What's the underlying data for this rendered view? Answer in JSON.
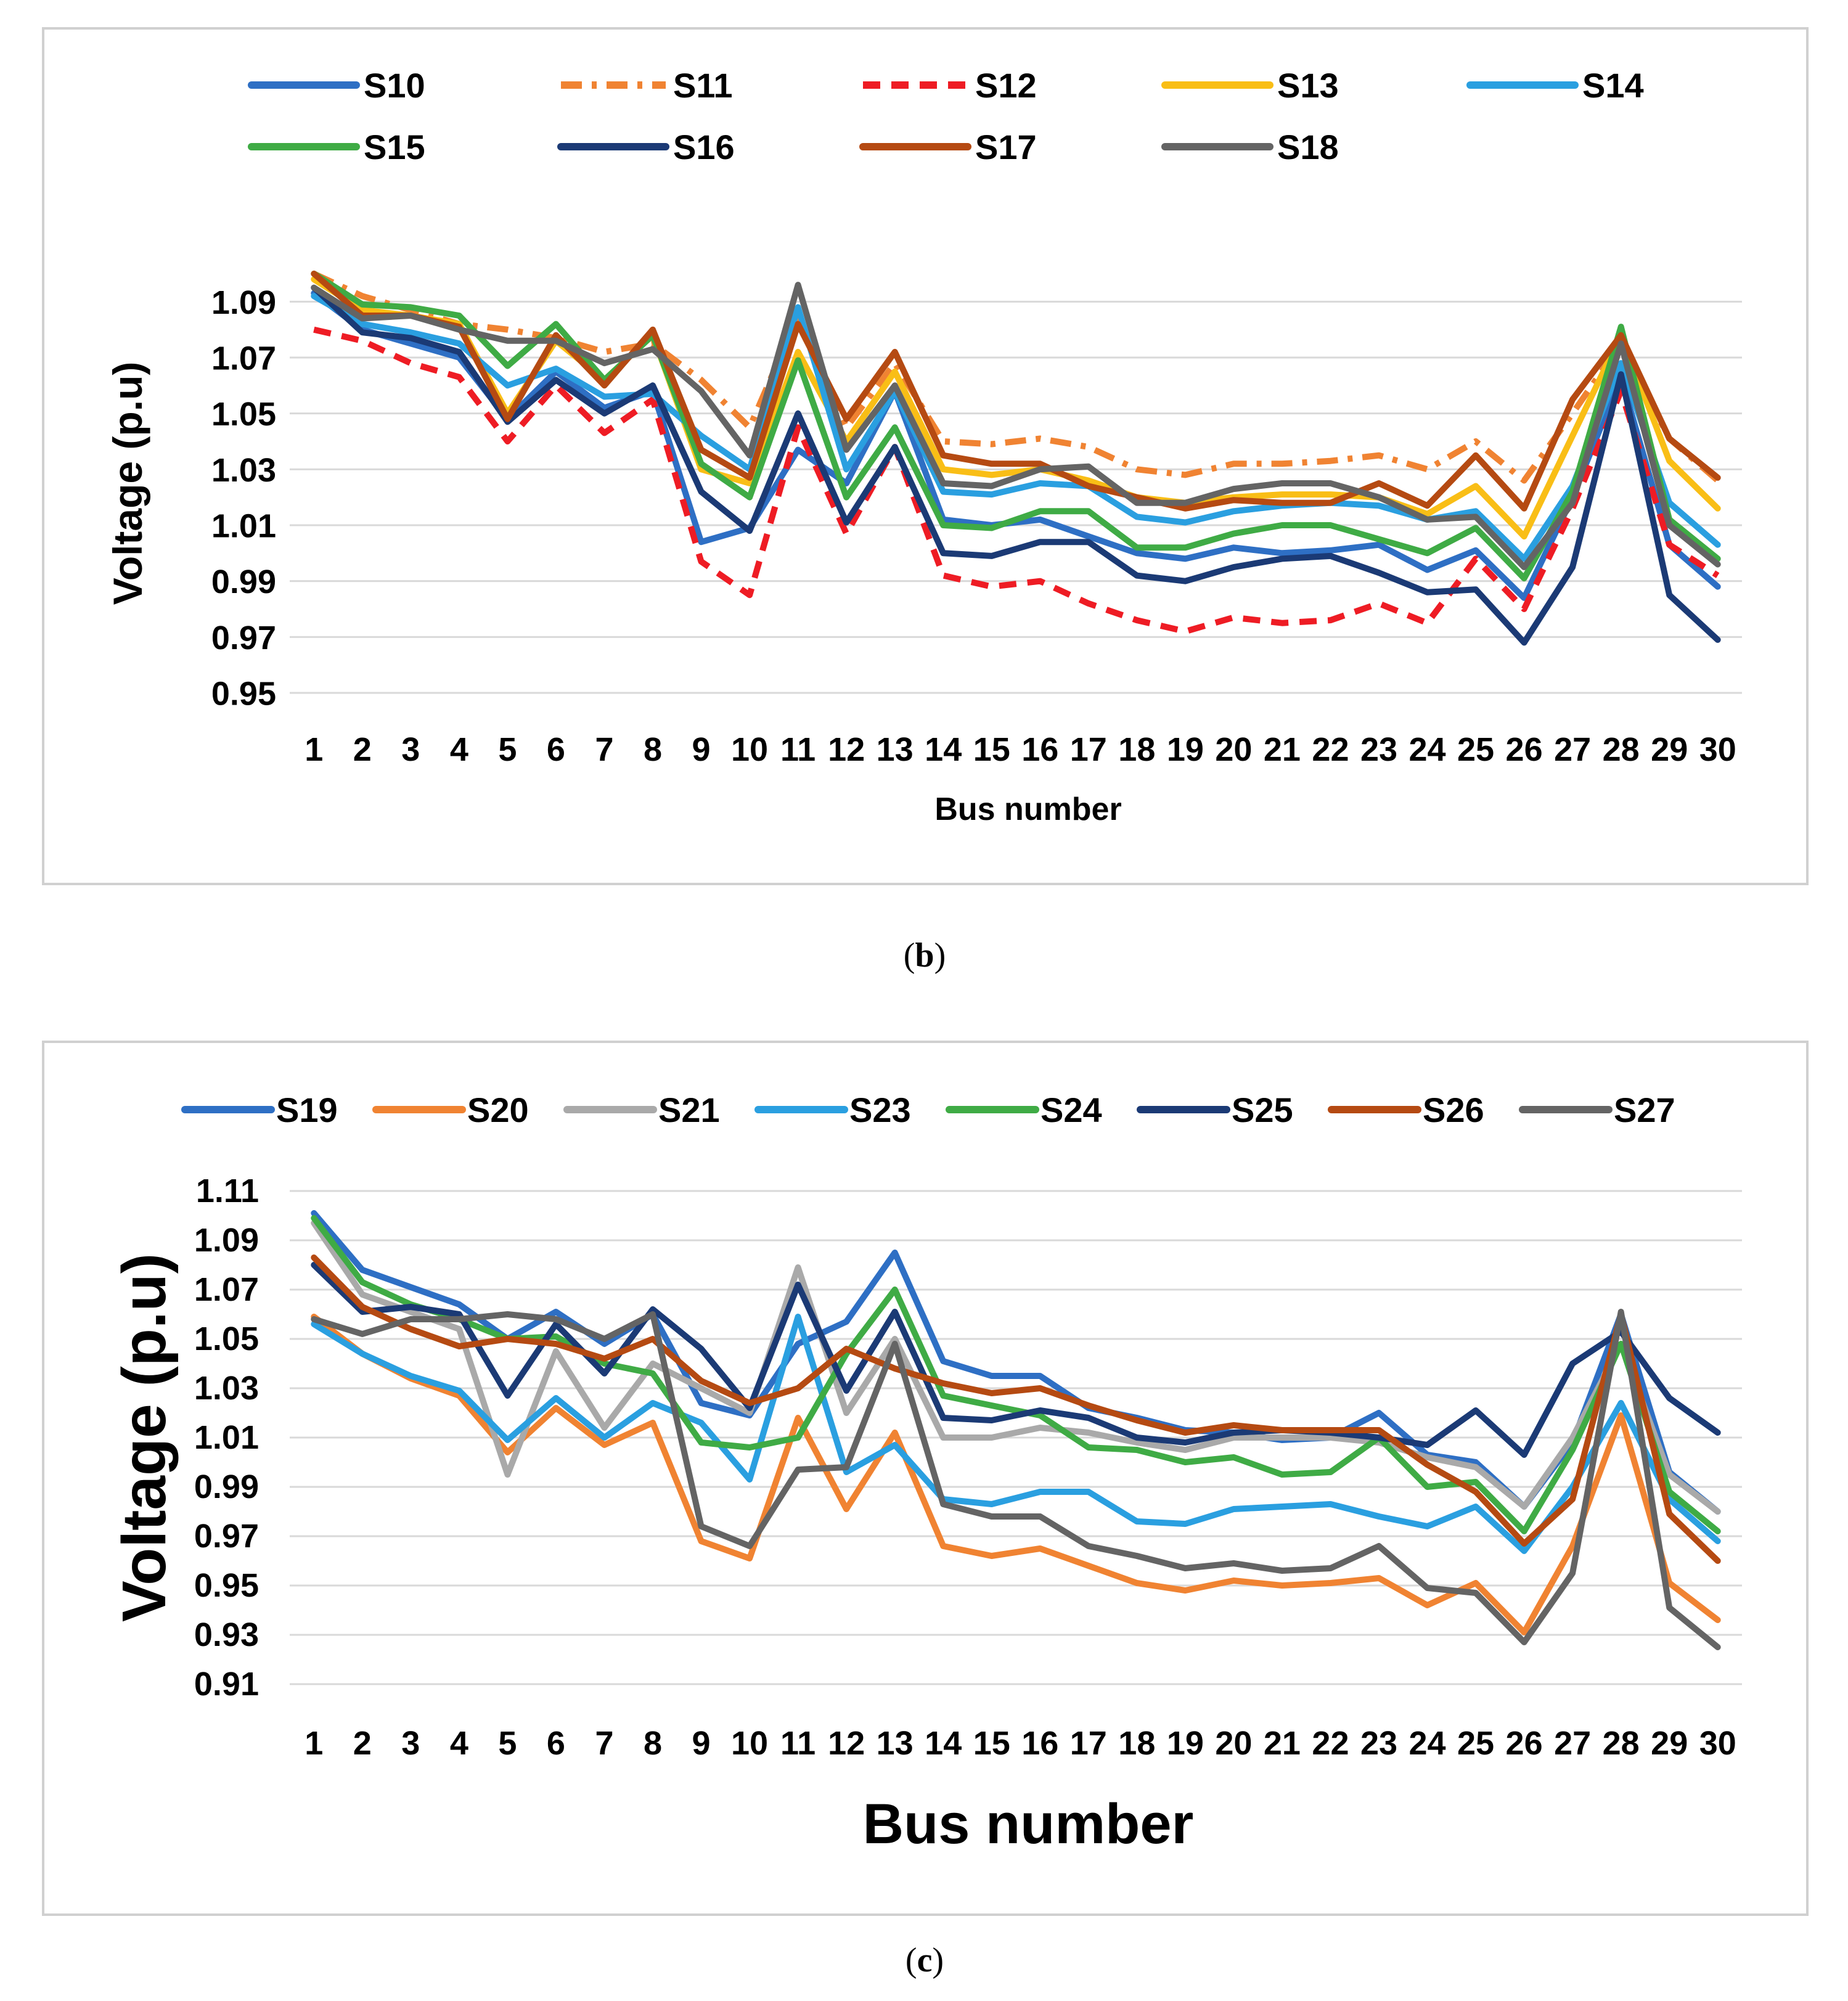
{
  "chart_data": [
    {
      "type": "line",
      "panel_label": "(b)",
      "caption_letter": "b",
      "xlabel": "Bus number",
      "ylabel": "Voltage (p.u)",
      "ylim": [
        0.95,
        1.1
      ],
      "yticks": [
        "0.95",
        "0.97",
        "0.99",
        "1.01",
        "1.03",
        "1.05",
        "1.07",
        "1.09"
      ],
      "grid": true,
      "legend_position": "top",
      "categories": [
        "1",
        "2",
        "3",
        "4",
        "5",
        "6",
        "7",
        "8",
        "9",
        "10",
        "11",
        "12",
        "13",
        "14",
        "15",
        "16",
        "17",
        "18",
        "19",
        "20",
        "21",
        "22",
        "23",
        "24",
        "25",
        "26",
        "27",
        "28",
        "29",
        "30"
      ],
      "series": [
        {
          "name": "S10",
          "color": "#2e6fc4",
          "dash": "solid",
          "values": [
            1.093,
            1.08,
            1.075,
            1.07,
            1.048,
            1.065,
            1.052,
            1.058,
            1.004,
            1.009,
            1.037,
            1.025,
            1.058,
            1.012,
            1.01,
            1.012,
            1.006,
            1.0,
            0.998,
            1.002,
            1.0,
            1.001,
            1.003,
            0.994,
            1.001,
            0.984,
            1.02,
            1.063,
            1.003,
            0.988
          ]
        },
        {
          "name": "S11",
          "color": "#f08332",
          "dash": "dashdot",
          "values": [
            1.1,
            1.092,
            1.087,
            1.082,
            1.08,
            1.077,
            1.072,
            1.075,
            1.062,
            1.045,
            1.085,
            1.045,
            1.068,
            1.04,
            1.039,
            1.041,
            1.038,
            1.03,
            1.028,
            1.032,
            1.032,
            1.033,
            1.035,
            1.03,
            1.04,
            1.026,
            1.05,
            1.075,
            1.041,
            1.026
          ]
        },
        {
          "name": "S12",
          "color": "#ee1c24",
          "dash": "dashed",
          "values": [
            1.08,
            1.076,
            1.068,
            1.063,
            1.04,
            1.06,
            1.043,
            1.055,
            0.997,
            0.985,
            1.045,
            1.007,
            1.038,
            0.992,
            0.988,
            0.99,
            0.982,
            0.976,
            0.972,
            0.977,
            0.975,
            0.976,
            0.982,
            0.975,
            0.998,
            0.98,
            1.016,
            1.058,
            1.003,
            0.992
          ]
        },
        {
          "name": "S13",
          "color": "#f9be16",
          "dash": "solid",
          "values": [
            1.098,
            1.087,
            1.085,
            1.082,
            1.05,
            1.076,
            1.062,
            1.078,
            1.03,
            1.025,
            1.072,
            1.04,
            1.065,
            1.03,
            1.028,
            1.03,
            1.026,
            1.02,
            1.018,
            1.02,
            1.021,
            1.021,
            1.02,
            1.014,
            1.024,
            1.006,
            1.042,
            1.078,
            1.033,
            1.016
          ]
        },
        {
          "name": "S14",
          "color": "#2a9fe0",
          "dash": "solid",
          "values": [
            1.092,
            1.082,
            1.079,
            1.075,
            1.06,
            1.066,
            1.056,
            1.057,
            1.042,
            1.03,
            1.088,
            1.03,
            1.058,
            1.022,
            1.021,
            1.025,
            1.024,
            1.013,
            1.011,
            1.015,
            1.017,
            1.018,
            1.017,
            1.012,
            1.015,
            0.998,
            1.024,
            1.068,
            1.018,
            1.003
          ]
        },
        {
          "name": "S15",
          "color": "#3fab45",
          "dash": "solid",
          "values": [
            1.1,
            1.089,
            1.088,
            1.085,
            1.067,
            1.082,
            1.062,
            1.078,
            1.032,
            1.02,
            1.069,
            1.02,
            1.045,
            1.01,
            1.009,
            1.015,
            1.015,
            1.002,
            1.002,
            1.007,
            1.01,
            1.01,
            1.005,
            1.0,
            1.009,
            0.991,
            1.022,
            1.081,
            1.012,
            0.998
          ]
        },
        {
          "name": "S16",
          "color": "#1b3a75",
          "dash": "solid",
          "values": [
            1.095,
            1.079,
            1.077,
            1.072,
            1.047,
            1.062,
            1.05,
            1.06,
            1.022,
            1.008,
            1.05,
            1.011,
            1.038,
            1.0,
            0.999,
            1.004,
            1.004,
            0.992,
            0.99,
            0.995,
            0.998,
            0.999,
            0.993,
            0.986,
            0.987,
            0.968,
            0.995,
            1.064,
            0.985,
            0.969
          ]
        },
        {
          "name": "S17",
          "color": "#b54a12",
          "dash": "solid",
          "values": [
            1.1,
            1.085,
            1.085,
            1.081,
            1.048,
            1.078,
            1.06,
            1.08,
            1.037,
            1.027,
            1.082,
            1.048,
            1.072,
            1.035,
            1.032,
            1.032,
            1.024,
            1.02,
            1.016,
            1.019,
            1.018,
            1.018,
            1.025,
            1.017,
            1.035,
            1.016,
            1.055,
            1.078,
            1.041,
            1.027
          ]
        },
        {
          "name": "S18",
          "color": "#646464",
          "dash": "solid",
          "values": [
            1.095,
            1.084,
            1.085,
            1.08,
            1.076,
            1.076,
            1.068,
            1.073,
            1.058,
            1.035,
            1.096,
            1.037,
            1.06,
            1.025,
            1.024,
            1.03,
            1.031,
            1.018,
            1.018,
            1.023,
            1.025,
            1.025,
            1.02,
            1.012,
            1.013,
            0.995,
            1.018,
            1.075,
            1.01,
            0.996
          ]
        }
      ]
    },
    {
      "type": "line",
      "panel_label": "(c)",
      "caption_letter": "c",
      "xlabel": "Bus number",
      "ylabel": "Voltage (p.u)",
      "ylim": [
        0.91,
        1.11
      ],
      "yticks": [
        "0.91",
        "0.93",
        "0.95",
        "0.97",
        "0.99",
        "1.01",
        "1.03",
        "1.05",
        "1.07",
        "1.09",
        "1.11"
      ],
      "grid": true,
      "legend_position": "top",
      "categories": [
        "1",
        "2",
        "3",
        "4",
        "5",
        "6",
        "7",
        "8",
        "9",
        "10",
        "11",
        "12",
        "13",
        "14",
        "15",
        "16",
        "17",
        "18",
        "19",
        "20",
        "21",
        "22",
        "23",
        "24",
        "25",
        "26",
        "27",
        "28",
        "29",
        "30"
      ],
      "series": [
        {
          "name": "S19",
          "color": "#2e6fc4",
          "dash": "solid",
          "values": [
            1.101,
            1.078,
            1.071,
            1.064,
            1.05,
            1.061,
            1.048,
            1.06,
            1.024,
            1.019,
            1.048,
            1.057,
            1.085,
            1.041,
            1.035,
            1.035,
            1.022,
            1.018,
            1.013,
            1.012,
            1.009,
            1.01,
            1.02,
            1.003,
            1.0,
            0.982,
            1.008,
            1.06,
            0.996,
            0.98
          ]
        },
        {
          "name": "S20",
          "color": "#f08332",
          "dash": "solid",
          "values": [
            1.059,
            1.044,
            1.034,
            1.027,
            1.004,
            1.022,
            1.007,
            1.016,
            0.968,
            0.961,
            1.018,
            0.981,
            1.012,
            0.966,
            0.962,
            0.965,
            0.958,
            0.951,
            0.948,
            0.952,
            0.95,
            0.951,
            0.953,
            0.942,
            0.951,
            0.931,
            0.966,
            1.019,
            0.951,
            0.936
          ]
        },
        {
          "name": "S21",
          "color": "#a9a9a9",
          "dash": "solid",
          "values": [
            1.097,
            1.068,
            1.061,
            1.054,
            0.995,
            1.045,
            1.014,
            1.04,
            1.03,
            1.02,
            1.079,
            1.02,
            1.05,
            1.01,
            1.01,
            1.014,
            1.012,
            1.008,
            1.005,
            1.01,
            1.01,
            1.01,
            1.008,
            1.002,
            0.998,
            0.982,
            1.01,
            1.048,
            0.995,
            0.98
          ]
        },
        {
          "name": "S23",
          "color": "#2a9fe0",
          "dash": "solid",
          "values": [
            1.056,
            1.044,
            1.035,
            1.029,
            1.009,
            1.026,
            1.01,
            1.024,
            1.016,
            0.993,
            1.059,
            0.996,
            1.007,
            0.985,
            0.983,
            0.988,
            0.988,
            0.976,
            0.975,
            0.981,
            0.982,
            0.983,
            0.978,
            0.974,
            0.982,
            0.964,
            0.99,
            1.024,
            0.985,
            0.968
          ]
        },
        {
          "name": "S24",
          "color": "#3fab45",
          "dash": "solid",
          "values": [
            1.099,
            1.073,
            1.064,
            1.058,
            1.05,
            1.051,
            1.04,
            1.036,
            1.008,
            1.006,
            1.01,
            1.044,
            1.07,
            1.027,
            1.023,
            1.019,
            1.006,
            1.005,
            1.0,
            1.002,
            0.995,
            0.996,
            1.01,
            0.99,
            0.992,
            0.972,
            1.005,
            1.048,
            0.988,
            0.972
          ]
        },
        {
          "name": "S25",
          "color": "#1b3a75",
          "dash": "solid",
          "values": [
            1.08,
            1.061,
            1.063,
            1.06,
            1.027,
            1.056,
            1.036,
            1.062,
            1.046,
            1.022,
            1.072,
            1.029,
            1.061,
            1.018,
            1.017,
            1.021,
            1.018,
            1.01,
            1.008,
            1.012,
            1.013,
            1.012,
            1.01,
            1.007,
            1.021,
            1.003,
            1.04,
            1.053,
            1.026,
            1.012
          ]
        },
        {
          "name": "S26",
          "color": "#b54a12",
          "dash": "solid",
          "values": [
            1.083,
            1.063,
            1.054,
            1.047,
            1.05,
            1.048,
            1.042,
            1.05,
            1.033,
            1.024,
            1.03,
            1.046,
            1.038,
            1.032,
            1.028,
            1.03,
            1.023,
            1.017,
            1.012,
            1.015,
            1.013,
            1.013,
            1.013,
            0.999,
            0.988,
            0.967,
            0.985,
            1.06,
            0.979,
            0.96
          ]
        },
        {
          "name": "S27",
          "color": "#646464",
          "dash": "solid",
          "values": [
            1.058,
            1.052,
            1.058,
            1.058,
            1.06,
            1.058,
            1.05,
            1.06,
            0.974,
            0.966,
            0.997,
            0.998,
            1.048,
            0.983,
            0.978,
            0.978,
            0.966,
            0.962,
            0.957,
            0.959,
            0.956,
            0.957,
            0.966,
            0.949,
            0.947,
            0.927,
            0.955,
            1.061,
            0.941,
            0.925
          ]
        }
      ]
    }
  ]
}
